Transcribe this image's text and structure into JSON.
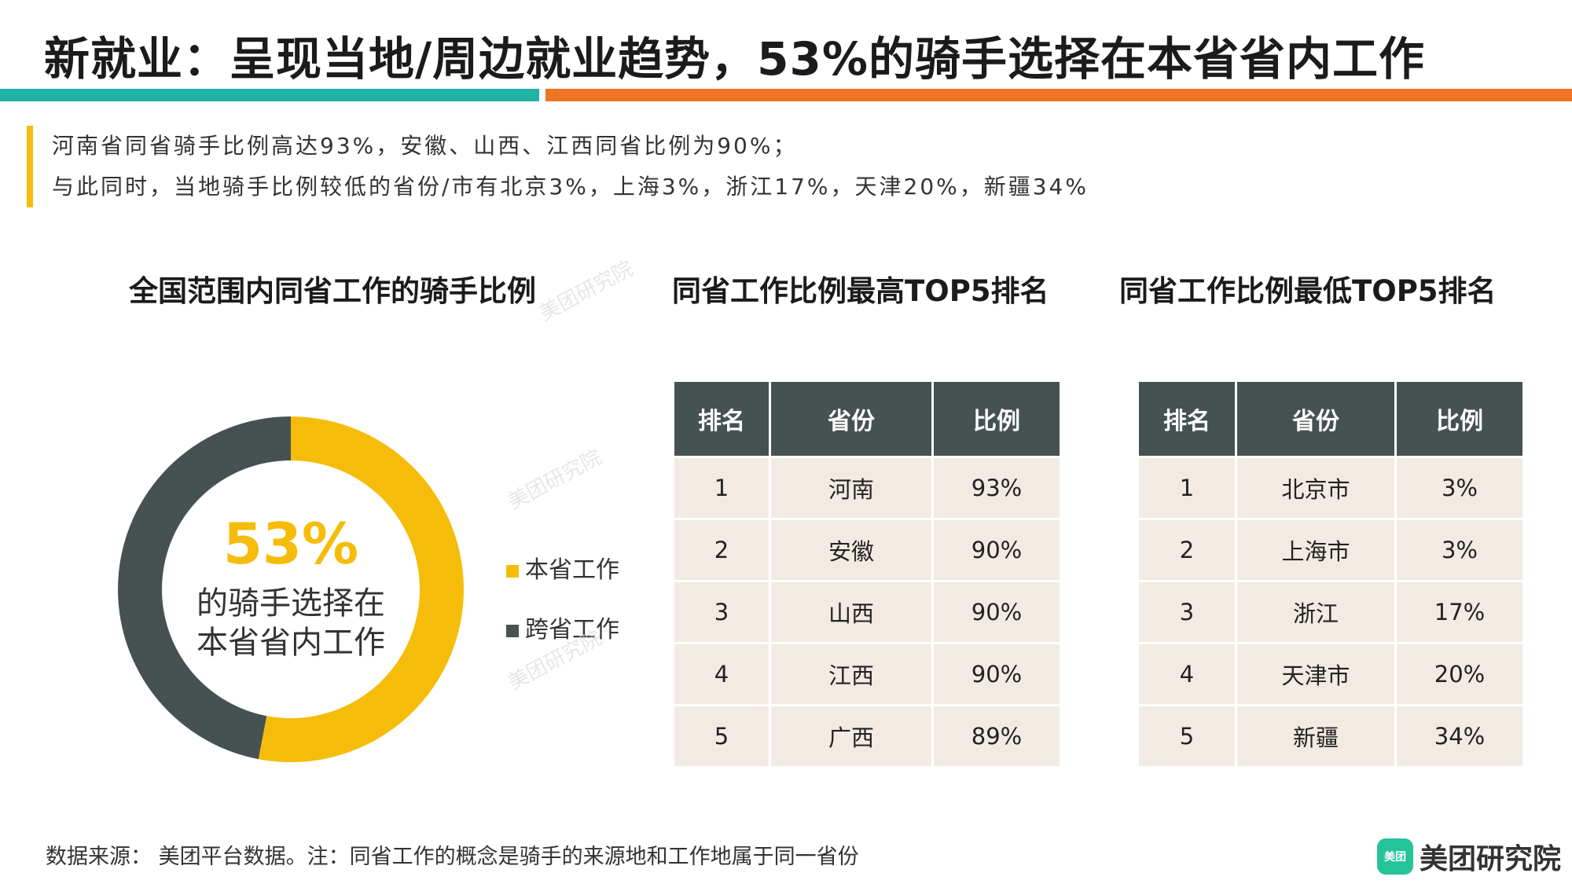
{
  "page": {
    "title": "新就业：呈现当地/周边就业趋势，53%的骑手选择在本省省内工作",
    "notes": [
      "河南省同省骑手比例高达93%，安徽、山西、江西同省比例为90%；",
      "与此同时，当地骑手比例较低的省份/市有北京3%，上海3%，浙江17%，天津20%，新疆34%"
    ],
    "footer": "数据来源： 美团平台数据。注：同省工作的概念是骑手的来源地和工作地属于同一省份",
    "logo": {
      "icon_text": "美团",
      "text": "美团研究院"
    },
    "watermark": "美团研究院",
    "colors": {
      "teal": "#20b2a4",
      "orange": "#ef7423",
      "yellow": "#f5bd0a",
      "dark": "#465252",
      "cell": "#f2ebe3"
    }
  },
  "chart_data": [
    {
      "type": "pie",
      "title": "全国范围内同省工作的骑手比例",
      "center_value": "53%",
      "center_text": [
        "的骑手选择在",
        "本省省内工作"
      ],
      "slices": [
        {
          "label": "本省工作",
          "value": 53,
          "color": "#f5bd0a"
        },
        {
          "label": "跨省工作",
          "value": 47,
          "color": "#465252"
        }
      ],
      "legend": "right"
    },
    {
      "type": "table",
      "title": "同省工作比例最高TOP5排名",
      "columns": [
        "排名",
        "省份",
        "比例"
      ],
      "rows": [
        [
          "1",
          "河南",
          "93%"
        ],
        [
          "2",
          "安徽",
          "90%"
        ],
        [
          "3",
          "山西",
          "90%"
        ],
        [
          "4",
          "江西",
          "90%"
        ],
        [
          "5",
          "广西",
          "89%"
        ]
      ]
    },
    {
      "type": "table",
      "title": "同省工作比例最低TOP5排名",
      "columns": [
        "排名",
        "省份",
        "比例"
      ],
      "rows": [
        [
          "1",
          "北京市",
          "3%"
        ],
        [
          "2",
          "上海市",
          "3%"
        ],
        [
          "3",
          "浙江",
          "17%"
        ],
        [
          "4",
          "天津市",
          "20%"
        ],
        [
          "5",
          "新疆",
          "34%"
        ]
      ]
    }
  ]
}
